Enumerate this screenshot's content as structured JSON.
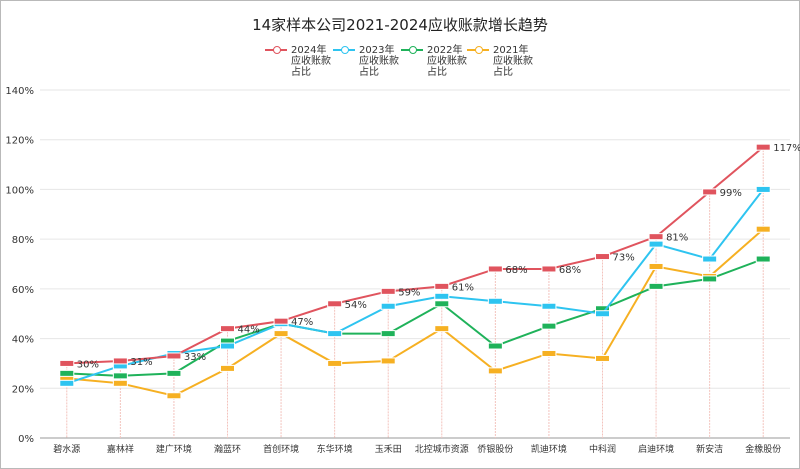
{
  "chart_data": {
    "type": "line",
    "title": "14家样本公司2021-2024应收账款增长趋势",
    "categories": [
      "碧水源",
      "嘉林祥",
      "建广环境",
      "瀚蓝环",
      "首创环境",
      "东华环境",
      "玉禾田",
      "北控城市资源",
      "侨银股份",
      "凯迪环境",
      "中科润",
      "启迪环境",
      "新安洁",
      "金橡股份"
    ],
    "ylim": [
      0,
      140
    ],
    "yticks": [
      "0%",
      "20%",
      "40%",
      "60%",
      "80%",
      "100%",
      "120%",
      "140%"
    ],
    "grid": true,
    "legend_position": "top",
    "series": [
      {
        "name": "2024年应收账款占比",
        "color": "#e0545e",
        "values": [
          30,
          31,
          33,
          44,
          47,
          54,
          59,
          61,
          68,
          68,
          73,
          81,
          99,
          117
        ],
        "labels": [
          "30%",
          "31%",
          "33%",
          "44%",
          "47%",
          "54%",
          "59%",
          "61%",
          "68%",
          "68%",
          "73%",
          "81%",
          "99%",
          "117%"
        ]
      },
      {
        "name": "2023年应收账款占比",
        "color": "#2ec4f0",
        "values": [
          22,
          29,
          34,
          37,
          46,
          42,
          53,
          57,
          55,
          53,
          50,
          78,
          72,
          100
        ]
      },
      {
        "name": "2022年应收账款占比",
        "color": "#1fb25a",
        "values": [
          26,
          25,
          26,
          39,
          46,
          42,
          42,
          54,
          37,
          45,
          52,
          61,
          64,
          72
        ]
      },
      {
        "name": "2021年应收账款占比",
        "color": "#f6b022",
        "values": [
          24,
          22,
          17,
          28,
          42,
          30,
          31,
          44,
          27,
          34,
          32,
          69,
          65,
          84
        ]
      }
    ]
  }
}
